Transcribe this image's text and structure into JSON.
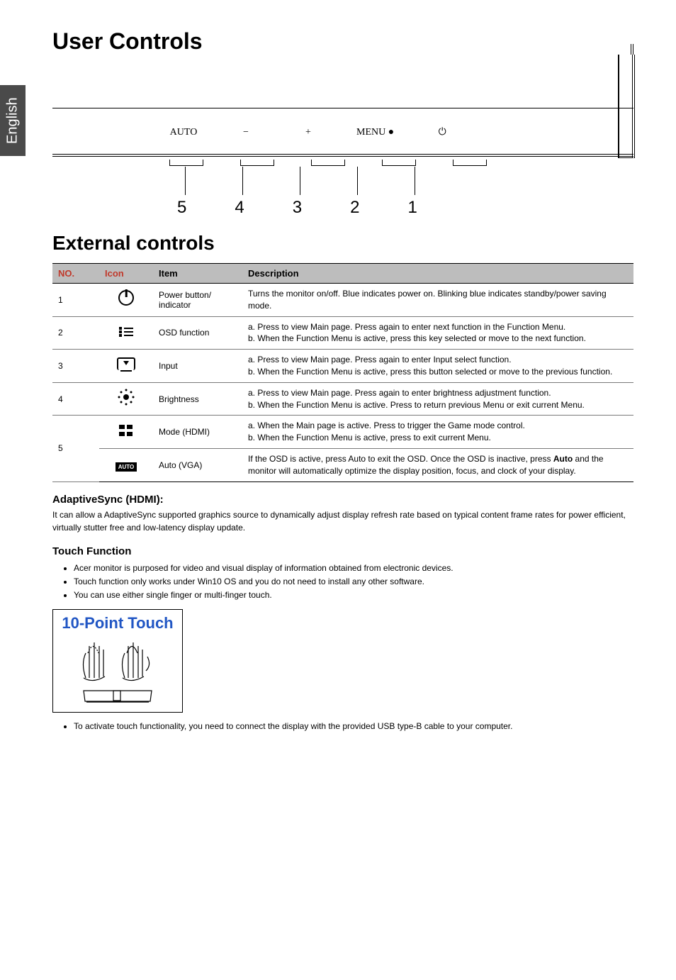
{
  "side_tab": "English",
  "main_title": "User Controls",
  "section_title": "External controls",
  "diagram": {
    "btn_labels": [
      "AUTO",
      "−",
      "+",
      "MENU   ●",
      "⏻"
    ],
    "nums": [
      "5",
      "4",
      "3",
      "2",
      "1"
    ]
  },
  "table": {
    "headers": {
      "no": "NO.",
      "icon": "Icon",
      "item": "Item",
      "desc": "Description"
    },
    "rows": [
      {
        "no": "1",
        "icon": "power",
        "item": "Power button/ indicator",
        "desc": "Turns the monitor on/off. Blue indicates power on. Blinking blue indicates standby/power saving mode."
      },
      {
        "no": "2",
        "icon": "list",
        "item": "OSD function",
        "desc": "a. Press to view Main page. Press again to enter next function in the Function Menu.\nb. When the Function Menu is active, press this key selected or move to the next function."
      },
      {
        "no": "3",
        "icon": "input",
        "item": "Input",
        "desc": "a. Press to view Main page. Press again to enter Input select function.\nb. When the Function Menu is active, press this button selected or move to the previous function."
      },
      {
        "no": "4",
        "icon": "bright",
        "item": "Brightness",
        "desc": "a. Press to view Main page. Press again to enter brightness adjustment function.\nb. When the Function Menu is active. Press to return previous Menu or exit current Menu."
      },
      {
        "no": "5",
        "icon": "mode",
        "item": "Mode (HDMI)",
        "desc": "a. When the Main page is active. Press to trigger the Game mode control.\nb. When the Function Menu is active, press to exit current Menu.",
        "rowspan_no": 2
      },
      {
        "no": "",
        "icon": "auto",
        "icon_label": "AUTO",
        "item": "Auto (VGA)",
        "desc_parts": [
          "If the OSD is active, press Auto to exit the OSD. Once the OSD is inactive, press ",
          "Auto",
          " and the monitor will automatically optimize the display position, focus, and clock of your display."
        ]
      }
    ]
  },
  "adaptive": {
    "title": "AdaptiveSync (HDMI):",
    "text": "It can allow a AdaptiveSync supported graphics source to dynamically adjust display refresh rate based on typical content frame rates for power efficient, virtually stutter free and low-latency display update."
  },
  "touch": {
    "title": "Touch Function",
    "bullets": [
      "Acer monitor is purposed for video and visual display of information obtained from electronic devices.",
      "Touch function only works under Win10 OS and you do not need to install any other software.",
      "You can use either single finger or multi-finger touch."
    ],
    "box_title": "10-Point Touch",
    "footer_bullet": "To activate touch functionality, you need to connect the display with the provided USB type-B cable to your computer."
  },
  "colors": {
    "side_tab_bg": "#4a4a4a",
    "header_bg": "#bdbdbd",
    "accent_red": "#c0392b",
    "touch_blue": "#2156c4"
  }
}
